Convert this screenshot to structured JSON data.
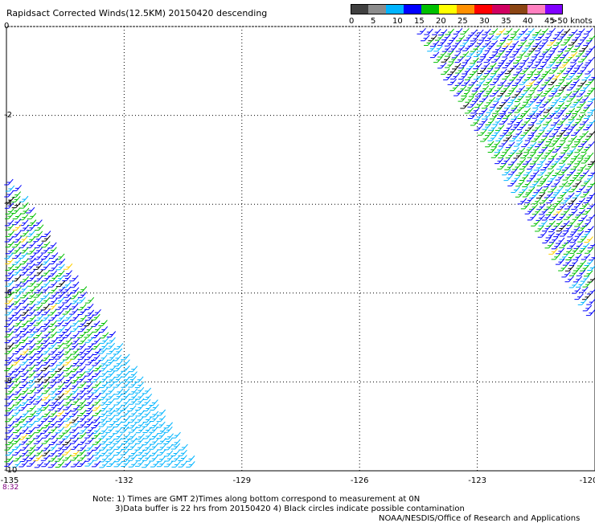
{
  "title": "Rapidsact Corrected Winds(12.5KM) 20150420 descending",
  "colorbar": {
    "labels": [
      "0",
      "5",
      "10",
      "15",
      "20",
      "25",
      "30",
      "35",
      "40",
      "45"
    ],
    "units": ">50 knots",
    "colors": [
      "#404040",
      "#8c8c8c",
      "#00b4ff",
      "#0000ff",
      "#00c000",
      "#ffff00",
      "#ff9000",
      "#ff0000",
      "#d00060",
      "#8b4513",
      "#ff80c0",
      "#8000ff"
    ]
  },
  "axes": {
    "y_ticks": [
      "0",
      "-2",
      "-4",
      "-6",
      "-8",
      "-10"
    ],
    "x_ticks": [
      "-135",
      "-132",
      "-129",
      "-126",
      "-123",
      "-120"
    ],
    "lat_range": [
      -10,
      0
    ],
    "lon_range": [
      -135,
      -120
    ],
    "grid": "dotted"
  },
  "swaths": [
    {
      "name": "east",
      "lon_top": [
        -124.5,
        -120
      ],
      "lon_bottom": [
        -120,
        -120
      ],
      "lat_range": [
        -6.3,
        0
      ],
      "dominant_speed": "10-20"
    },
    {
      "name": "west",
      "lon_top": [
        -135,
        -135
      ],
      "lon_bottom": [
        -135,
        -130.2
      ],
      "lat_range": [
        -10,
        -3.5
      ],
      "dominant_speed": "10-20"
    }
  ],
  "time_label": "8:32",
  "notes": {
    "line1": "Note: 1) Times are GMT 2)Times along bottom correspond to measurement at 0N",
    "line2": "3)Data buffer is 22 hrs from 20150420 4) Black circles indicate possible contamination",
    "credit": "NOAA/NESDIS/Office of Research and Applications"
  }
}
